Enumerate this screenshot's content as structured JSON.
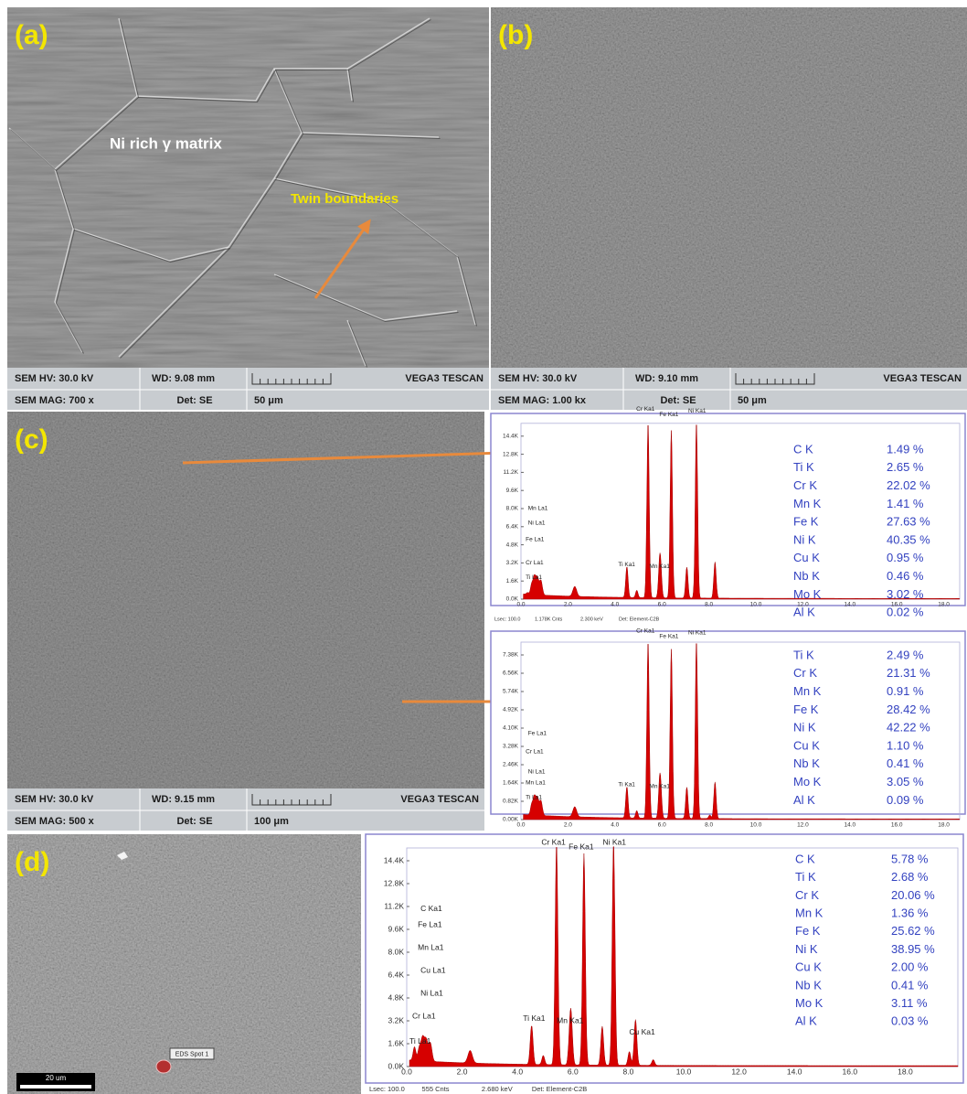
{
  "panels": [
    {
      "label": "(a)",
      "annotations": [
        "Ni rich γ matrix",
        "Twin boundaries"
      ],
      "info": {
        "hv": "SEM HV: 30.0 kV",
        "wd": "WD: 9.08 mm",
        "vendor": "VEGA3 TESCAN",
        "mag": "SEM MAG: 700 x",
        "det": "Det: SE",
        "scale": "50 μm"
      }
    },
    {
      "label": "(b)",
      "info": {
        "hv": "SEM HV: 30.0 kV",
        "wd": "WD: 9.10 mm",
        "vendor": "VEGA3 TESCAN",
        "mag": "SEM MAG: 1.00 kx",
        "det": "Det: SE",
        "scale": "50 μm"
      }
    },
    {
      "label": "(c)",
      "info": {
        "hv": "SEM HV: 30.0 kV",
        "wd": "WD: 9.15 mm",
        "vendor": "VEGA3 TESCAN",
        "mag": "SEM MAG: 500 x",
        "det": "Det: SE",
        "scale": "100 μm"
      }
    },
    {
      "label": "(d)",
      "spot": "EDS Spot 1",
      "scale": "20 um"
    }
  ],
  "spectra": [
    {
      "yticks": [
        "0.0K",
        "1.6K",
        "3.2K",
        "4.8K",
        "6.4K",
        "8.0K",
        "9.6K",
        "11.2K",
        "12.8K",
        "14.4K"
      ],
      "xticks": [
        "0.0",
        "2.0",
        "4.0",
        "6.0",
        "8.0",
        "10.0",
        "12.0",
        "14.0",
        "16.0",
        "18.0"
      ],
      "peaks": [
        "Cr Ka1",
        "Fe Ka1",
        "Ni Ka1",
        "Ti Ka1",
        "Mn Ka1",
        "Mn La1",
        "Ni La1",
        "Fe La1",
        "Cr La1",
        "Ti La1"
      ],
      "footer": [
        "Lsec: 100.0",
        "1.178K Cnts",
        "2.300 keV",
        "Det: Element-C2B"
      ],
      "composition": [
        [
          "C K",
          "1.49 %"
        ],
        [
          "Ti K",
          "2.65 %"
        ],
        [
          "Cr K",
          "22.02 %"
        ],
        [
          "Mn K",
          "1.41 %"
        ],
        [
          "Fe K",
          "27.63 %"
        ],
        [
          "Ni K",
          "40.35 %"
        ],
        [
          "Cu K",
          "0.95 %"
        ],
        [
          "Nb K",
          "0.46 %"
        ],
        [
          "Mo K",
          "3.02 %"
        ],
        [
          "Al K",
          "0.02 %"
        ]
      ]
    },
    {
      "yticks": [
        "0.00K",
        "0.82K",
        "1.64K",
        "2.46K",
        "3.28K",
        "4.10K",
        "4.92K",
        "5.74K",
        "6.56K",
        "7.38K"
      ],
      "xticks": [
        "0.0",
        "2.0",
        "4.0",
        "6.0",
        "8.0",
        "10.0",
        "12.0",
        "14.0",
        "16.0",
        "18.0"
      ],
      "peaks": [
        "Cr Ka1",
        "Fe Ka1",
        "Ni Ka1",
        "Ti Ka1",
        "Mn Ka1",
        "Fe La1",
        "Cr La1",
        "Ni La1",
        "Mn La1",
        "Ti La1"
      ],
      "composition": [
        [
          "Ti K",
          "2.49 %"
        ],
        [
          "Cr K",
          "21.31 %"
        ],
        [
          "Mn K",
          "0.91 %"
        ],
        [
          "Fe K",
          "28.42 %"
        ],
        [
          "Ni K",
          "42.22 %"
        ],
        [
          "Cu K",
          "1.10 %"
        ],
        [
          "Nb K",
          "0.41 %"
        ],
        [
          "Mo K",
          "3.05 %"
        ],
        [
          "Al K",
          "0.09 %"
        ]
      ]
    },
    {
      "yticks": [
        "0.0K",
        "1.6K",
        "3.2K",
        "4.8K",
        "6.4K",
        "8.0K",
        "9.6K",
        "11.2K",
        "12.8K",
        "14.4K"
      ],
      "xticks": [
        "0.0",
        "2.0",
        "4.0",
        "6.0",
        "8.0",
        "10.0",
        "12.0",
        "14.0",
        "16.0",
        "18.0"
      ],
      "peaks": [
        "Cr Ka1",
        "Fe Ka1",
        "Ni Ka1",
        "C Ka1",
        "Fe La1",
        "Mn La1",
        "Cu La1",
        "Ni La1",
        "Cr La1",
        "Ti La1",
        "Ti Ka1",
        "Mn Ka1",
        "Cu Ka1"
      ],
      "footer": [
        "Lsec: 100.0",
        "555 Cnts",
        "2.680 keV",
        "Det: Element-C2B"
      ],
      "composition": [
        [
          "C K",
          "5.78 %"
        ],
        [
          "Ti K",
          "2.68 %"
        ],
        [
          "Cr K",
          "20.06 %"
        ],
        [
          "Mn K",
          "1.36 %"
        ],
        [
          "Fe K",
          "25.62 %"
        ],
        [
          "Ni K",
          "38.95 %"
        ],
        [
          "Cu K",
          "2.00 %"
        ],
        [
          "Nb K",
          "0.41 %"
        ],
        [
          "Mo K",
          "3.11 %"
        ],
        [
          "Al K",
          "0.03 %"
        ]
      ]
    }
  ]
}
